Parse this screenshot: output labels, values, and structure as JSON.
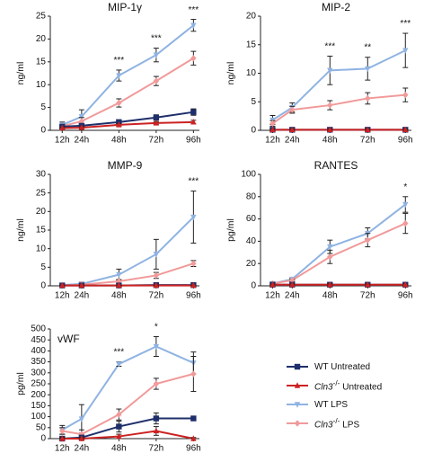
{
  "colors": {
    "wt_untreated": "#1f2f6b",
    "cln3_untreated": "#cc2222",
    "wt_lps": "#8fb3e2",
    "cln3_lps": "#f19a9a"
  },
  "legend": [
    {
      "prefix": "",
      "label": "WT Untreated",
      "color": "#1f2f6b",
      "marker": "square"
    },
    {
      "prefix": "Cln3",
      "sup": "-/-",
      "label": " Untreated",
      "color": "#cc2222",
      "marker": "triangle-up"
    },
    {
      "prefix": "",
      "label": "WT LPS",
      "color": "#8fb3e2",
      "marker": "triangle-down"
    },
    {
      "prefix": "Cln3",
      "sup": "-/-",
      "label": " LPS",
      "color": "#f19a9a",
      "marker": "diamond"
    }
  ],
  "chart_data": [
    {
      "type": "line",
      "title": "MIP-1γ",
      "ylabel": "ng/ml",
      "xlabel": "",
      "categories": [
        "12h",
        "24h",
        "48h",
        "72h",
        "96h"
      ],
      "ylim": [
        0,
        25
      ],
      "yticks": [
        0,
        5,
        10,
        15,
        20,
        25
      ],
      "series": [
        {
          "name": "WT Untreated",
          "values": [
            0.8,
            1.0,
            1.8,
            2.8,
            4.0
          ],
          "errors": [
            0.3,
            0.3,
            0.5,
            0.6,
            0.7
          ]
        },
        {
          "name": "Cln3-/- Untreated",
          "values": [
            0.5,
            0.6,
            1.2,
            1.6,
            1.8
          ],
          "errors": [
            0.2,
            0.2,
            0.3,
            0.3,
            0.4
          ]
        },
        {
          "name": "WT LPS",
          "values": [
            1.2,
            3.0,
            12.0,
            16.5,
            23.0
          ],
          "errors": [
            0.6,
            1.5,
            1.2,
            1.5,
            1.3
          ]
        },
        {
          "name": "Cln3-/- LPS",
          "values": [
            0.9,
            2.0,
            6.0,
            10.8,
            15.8
          ],
          "errors": [
            0.4,
            0.8,
            0.9,
            1.0,
            1.5
          ]
        }
      ],
      "annotations": [
        "",
        "",
        "***",
        "***",
        "***"
      ]
    },
    {
      "type": "line",
      "title": "MIP-2",
      "ylabel": "ng/ml",
      "xlabel": "",
      "categories": [
        "12h",
        "24h",
        "48h",
        "72h",
        "96h"
      ],
      "ylim": [
        0,
        20
      ],
      "yticks": [
        0,
        5,
        10,
        15,
        20
      ],
      "series": [
        {
          "name": "WT Untreated",
          "values": [
            0.1,
            0.1,
            0.1,
            0.1,
            0.1
          ],
          "errors": [
            0.05,
            0.05,
            0.05,
            0.05,
            0.05
          ]
        },
        {
          "name": "Cln3-/- Untreated",
          "values": [
            0.1,
            0.1,
            0.1,
            0.1,
            0.1
          ],
          "errors": [
            0.05,
            0.05,
            0.05,
            0.05,
            0.05
          ]
        },
        {
          "name": "WT LPS",
          "values": [
            1.8,
            4.0,
            10.5,
            10.8,
            14.0
          ],
          "errors": [
            0.8,
            0.8,
            2.5,
            2.0,
            3.0
          ]
        },
        {
          "name": "Cln3-/- LPS",
          "values": [
            1.2,
            3.6,
            4.4,
            5.6,
            6.2
          ],
          "errors": [
            0.5,
            0.6,
            0.8,
            1.0,
            1.2
          ]
        }
      ],
      "annotations": [
        "",
        "",
        "***",
        "**",
        "***"
      ]
    },
    {
      "type": "line",
      "title": "MMP-9",
      "ylabel": "ng/ml",
      "xlabel": "",
      "categories": [
        "12h",
        "24h",
        "48h",
        "72h",
        "96h"
      ],
      "ylim": [
        0,
        30
      ],
      "yticks": [
        0,
        5,
        10,
        15,
        20,
        25,
        30
      ],
      "series": [
        {
          "name": "WT Untreated",
          "values": [
            0.1,
            0.1,
            0.1,
            0.2,
            0.2
          ],
          "errors": [
            0.05,
            0.05,
            0.05,
            0.1,
            0.1
          ]
        },
        {
          "name": "Cln3-/- Untreated",
          "values": [
            0.1,
            0.1,
            0.1,
            0.1,
            0.1
          ],
          "errors": [
            0.05,
            0.05,
            0.05,
            0.05,
            0.05
          ]
        },
        {
          "name": "WT LPS",
          "values": [
            0.2,
            0.5,
            3.0,
            8.5,
            18.5
          ],
          "errors": [
            0.2,
            0.5,
            1.5,
            4.0,
            7.0
          ]
        },
        {
          "name": "Cln3-/- LPS",
          "values": [
            0.1,
            0.3,
            1.2,
            2.8,
            6.0
          ],
          "errors": [
            0.1,
            0.2,
            0.5,
            0.8,
            0.8
          ]
        }
      ],
      "annotations": [
        "",
        "",
        "",
        "",
        "***"
      ]
    },
    {
      "type": "line",
      "title": "RANTES",
      "ylabel": "pg/ml",
      "xlabel": "",
      "categories": [
        "12h",
        "24h",
        "48h",
        "72h",
        "96h"
      ],
      "ylim": [
        0,
        100
      ],
      "yticks": [
        0,
        20,
        40,
        60,
        80,
        100
      ],
      "series": [
        {
          "name": "WT Untreated",
          "values": [
            1,
            1,
            1,
            1,
            1
          ],
          "errors": [
            0.5,
            0.5,
            0.5,
            0.5,
            0.5
          ]
        },
        {
          "name": "Cln3-/- Untreated",
          "values": [
            1,
            1,
            1,
            1,
            1
          ],
          "errors": [
            0.5,
            0.5,
            0.5,
            0.5,
            0.5
          ]
        },
        {
          "name": "WT LPS",
          "values": [
            2,
            6,
            35,
            47,
            73
          ],
          "errors": [
            1,
            1,
            6,
            5,
            7
          ]
        },
        {
          "name": "Cln3-/- LPS",
          "values": [
            2,
            5,
            26,
            41,
            56
          ],
          "errors": [
            1,
            1,
            6,
            6,
            9
          ]
        }
      ],
      "annotations": [
        "",
        "",
        "",
        "",
        "*"
      ]
    },
    {
      "type": "line",
      "title": "vWF",
      "ylabel": "pg/ml",
      "xlabel": "",
      "categories": [
        "12h",
        "24h",
        "48h",
        "72h",
        "96h"
      ],
      "ylim": [
        0,
        500
      ],
      "yticks": [
        0,
        50,
        100,
        150,
        200,
        250,
        300,
        350,
        400,
        450,
        500
      ],
      "series": [
        {
          "name": "WT Untreated",
          "values": [
            0,
            5,
            55,
            92,
            92
          ],
          "errors": [
            5,
            5,
            25,
            25,
            5
          ]
        },
        {
          "name": "Cln3-/- Untreated",
          "values": [
            0,
            0,
            10,
            35,
            0
          ],
          "errors": [
            5,
            5,
            10,
            20,
            5
          ]
        },
        {
          "name": "WT LPS",
          "values": [
            40,
            90,
            340,
            420,
            345
          ],
          "errors": [
            20,
            65,
            10,
            45,
            50
          ]
        },
        {
          "name": "Cln3-/- LPS",
          "values": [
            35,
            20,
            110,
            250,
            295
          ],
          "errors": [
            15,
            20,
            25,
            25,
            80
          ]
        }
      ],
      "annotations": [
        "",
        "",
        "***",
        "*",
        ""
      ]
    }
  ]
}
